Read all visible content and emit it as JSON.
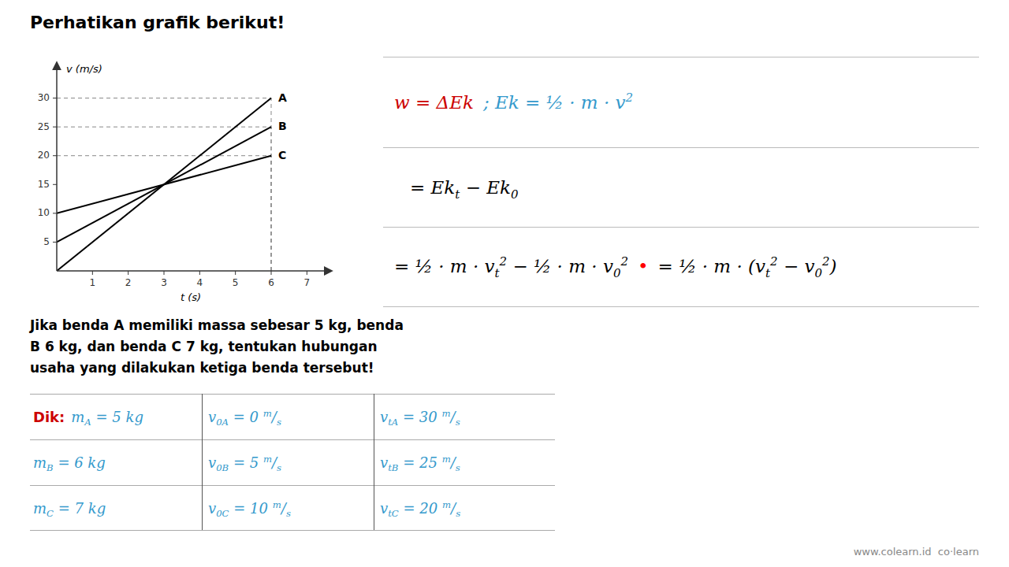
{
  "chart_data": {
    "type": "line",
    "title": "Perhatikan grafik berikut!",
    "xlabel": "t (s)",
    "ylabel": "v (m/s)",
    "xlim": [
      0,
      7.5
    ],
    "ylim": [
      0,
      35
    ],
    "xticks": [
      1,
      2,
      3,
      4,
      5,
      6,
      7
    ],
    "yticks": [
      5,
      10,
      15,
      20,
      25,
      30
    ],
    "series": [
      {
        "name": "A",
        "color": "#000000",
        "x": [
          0,
          6
        ],
        "values": [
          0,
          30
        ]
      },
      {
        "name": "B",
        "color": "#000000",
        "x": [
          0,
          6
        ],
        "values": [
          5,
          25
        ]
      },
      {
        "name": "C",
        "color": "#000000",
        "x": [
          0,
          6
        ],
        "values": [
          10,
          20
        ]
      }
    ],
    "annotations": {
      "formulas": [
        [
          {
            "color": "#cc0000",
            "parts": [
              "w = ΔEk"
            ]
          },
          {
            "color": "#3399cc",
            "parts": [
              "; Ek = ½ · m · v",
              {
                "sup": "2"
              }
            ]
          }
        ],
        [
          {
            "color": "#000000",
            "parts": [
              "= Ek",
              {
                "sub": "t"
              },
              " − Ek",
              {
                "sub": "0"
              }
            ]
          }
        ],
        [
          {
            "color": "#000000",
            "parts": [
              "= ½ · m · v",
              {
                "sub": "t"
              },
              {
                "sup": "2"
              },
              " − ½ · m · v",
              {
                "sub": "0"
              },
              {
                "sup": "2"
              }
            ]
          },
          {
            "color": "#ff0000",
            "parts": [
              "•"
            ]
          },
          {
            "color": "#000000",
            "parts": [
              "= ½ · m · (v",
              {
                "sub": "t"
              },
              {
                "sup": "2"
              },
              " − v",
              {
                "sub": "0"
              },
              {
                "sup": "2"
              },
              ")"
            ]
          }
        ]
      ],
      "problem": [
        "Jika benda A memiliki massa sebesar 5 kg, benda",
        "B 6 kg, dan benda C 7 kg, tentukan hubungan",
        "usaha yang dilakukan ketiga benda tersebut!"
      ],
      "table": [
        [
          [
            {
              "color": "#cc0000",
              "parts": [
                "Dik:"
              ]
            },
            {
              "color": "#3399cc",
              "parts": [
                "m",
                {
                  "sub": "A"
                },
                " = 5 kg"
              ]
            }
          ],
          [
            {
              "color": "#3399cc",
              "parts": [
                "v",
                {
                  "sub": "0A"
                },
                " = 0 ",
                {
                  "sup": "m"
                },
                "/",
                {
                  "sub": "s"
                }
              ]
            }
          ],
          [
            {
              "color": "#3399cc",
              "parts": [
                "v",
                {
                  "sub": "tA"
                },
                " = 30 ",
                {
                  "sup": "m"
                },
                "/",
                {
                  "sub": "s"
                }
              ]
            }
          ]
        ],
        [
          [
            {
              "color": "#3399cc",
              "parts": [
                "m",
                {
                  "sub": "B"
                },
                " = 6 kg"
              ]
            }
          ],
          [
            {
              "color": "#3399cc",
              "parts": [
                "v",
                {
                  "sub": "0B"
                },
                " = 5 ",
                {
                  "sup": "m"
                },
                "/",
                {
                  "sub": "s"
                }
              ]
            }
          ],
          [
            {
              "color": "#3399cc",
              "parts": [
                "v",
                {
                  "sub": "tB"
                },
                " = 25 ",
                {
                  "sup": "m"
                },
                "/",
                {
                  "sub": "s"
                }
              ]
            }
          ]
        ],
        [
          [
            {
              "color": "#3399cc",
              "parts": [
                "m",
                {
                  "sub": "C"
                },
                " = 7 kg"
              ]
            }
          ],
          [
            {
              "color": "#3399cc",
              "parts": [
                "v",
                {
                  "sub": "0C"
                },
                " = 10 ",
                {
                  "sup": "m"
                },
                "/",
                {
                  "sub": "s"
                }
              ]
            }
          ],
          [
            {
              "color": "#3399cc",
              "parts": [
                "v",
                {
                  "sub": "tC"
                },
                " = 20 ",
                {
                  "sup": "m"
                },
                "/",
                {
                  "sub": "s"
                }
              ]
            }
          ]
        ]
      ],
      "watermark": "www.colearn.id  co·learn"
    }
  }
}
